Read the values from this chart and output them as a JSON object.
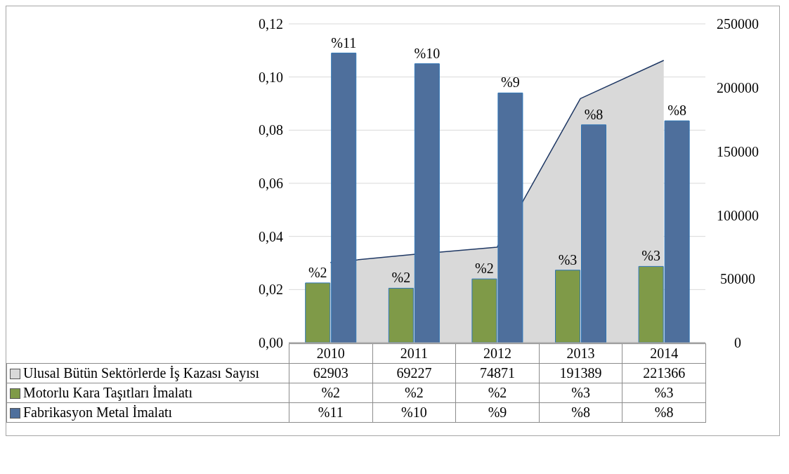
{
  "chart_data": {
    "type": "bar",
    "categories": [
      "2010",
      "2011",
      "2012",
      "2013",
      "2014"
    ],
    "series": [
      {
        "name": "Ulusal Bütün Sektörlerde İş Kazası Sayısı",
        "type": "area",
        "axis": "y2",
        "color": "#d9d9d9",
        "values": [
          62903,
          69227,
          74871,
          191389,
          221366
        ],
        "value_labels": [
          "62903",
          "69227",
          "74871",
          "191389",
          "221366"
        ]
      },
      {
        "name": "Motorlu Kara Taşıtları İmalatı",
        "type": "bar",
        "color": "#7f9a48",
        "values": [
          0.0225,
          0.0205,
          0.024,
          0.0273,
          0.0287
        ],
        "value_labels": [
          "%2",
          "%2",
          "%2",
          "%3",
          "%3"
        ]
      },
      {
        "name": "Fabrikasyon Metal İmalatı",
        "type": "bar",
        "color": "#4e6f9c",
        "values": [
          0.109,
          0.105,
          0.094,
          0.082,
          0.0835
        ],
        "value_labels": [
          "%11",
          "%10",
          "%9",
          "%8",
          "%8"
        ]
      }
    ],
    "ylim": [
      0,
      0.12
    ],
    "yticks": [
      {
        "value": 0,
        "label": "0,00"
      },
      {
        "value": 0.02,
        "label": "0,02"
      },
      {
        "value": 0.04,
        "label": "0,04"
      },
      {
        "value": 0.06,
        "label": "0,06"
      },
      {
        "value": 0.08,
        "label": "0,08"
      },
      {
        "value": 0.1,
        "label": "0,10"
      },
      {
        "value": 0.12,
        "label": "0,12"
      }
    ],
    "y2lim": [
      0,
      250000
    ],
    "y2ticks": [
      0,
      50000,
      100000,
      150000,
      200000,
      250000
    ],
    "grid": "y",
    "legend": "bottom"
  }
}
